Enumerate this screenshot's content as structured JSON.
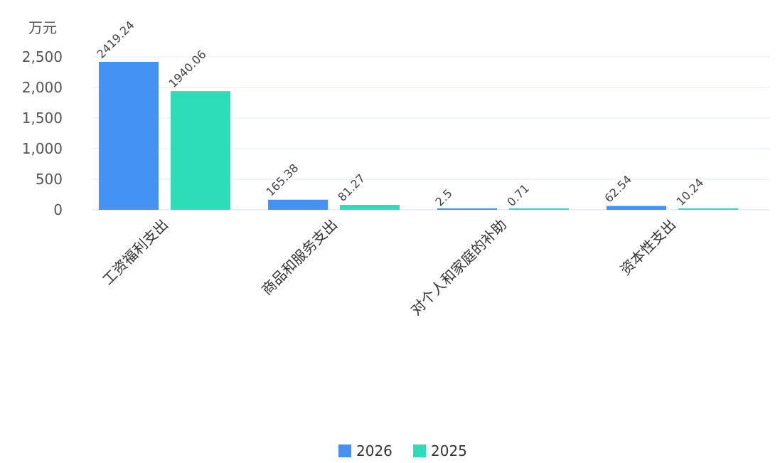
{
  "chart_data": {
    "type": "bar",
    "title": "",
    "xlabel": "",
    "ylabel": "万元",
    "ylim": [
      0,
      2500
    ],
    "yticks": [
      0,
      500,
      1000,
      1500,
      2000,
      2500
    ],
    "ytick_labels": [
      "0",
      "500",
      "1,000",
      "1,500",
      "2,000",
      "2,500"
    ],
    "categories": [
      "工资福利支出",
      "商品和服务支出",
      "对个人和家庭的补助",
      "资本性支出"
    ],
    "series": [
      {
        "name": "2026",
        "color": "#4392f4",
        "values": [
          2419.24,
          165.38,
          2.5,
          62.54
        ],
        "labels": [
          "2419.24",
          "165.38",
          "2.5",
          "62.54"
        ]
      },
      {
        "name": "2025",
        "color": "#2ddcb8",
        "values": [
          1940.06,
          81.27,
          0.71,
          10.24
        ],
        "labels": [
          "1940.06",
          "81.27",
          "0.71",
          "10.24"
        ]
      }
    ],
    "grid": true,
    "legend_position": "bottom-center"
  }
}
